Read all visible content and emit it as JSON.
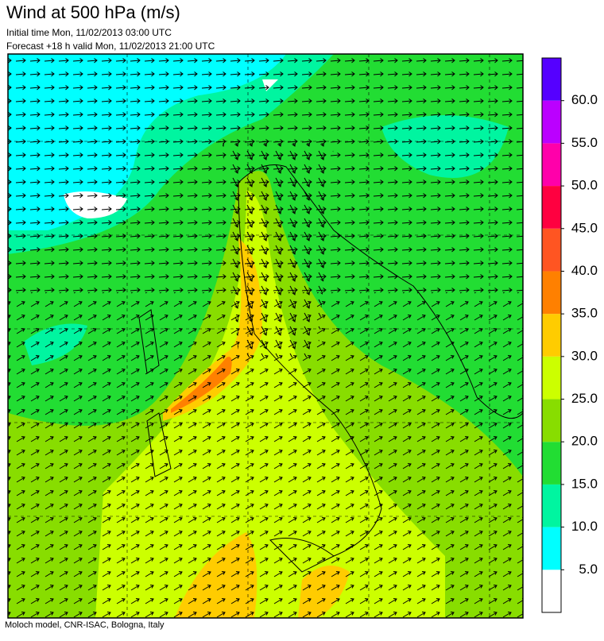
{
  "header": {
    "title": "Wind at 500 hPa (m/s)",
    "initial_time": "Initial time  Mon, 11/02/2013 03:00 UTC",
    "forecast": "Forecast +18 h valid  Mon, 11/02/2013 21:00 UTC"
  },
  "colorbar": {
    "colors": [
      "#ffffff",
      "#00ffff",
      "#00f5a0",
      "#22dd33",
      "#88dd00",
      "#ccff00",
      "#ffcc00",
      "#ff8000",
      "#ff5522",
      "#ff0040",
      "#ff00aa",
      "#bb00ff",
      "#5500ff"
    ],
    "ticks": [
      {
        "value": 5,
        "label": "5.0"
      },
      {
        "value": 10,
        "label": "10.0"
      },
      {
        "value": 15,
        "label": "15.0"
      },
      {
        "value": 20,
        "label": "20.0"
      },
      {
        "value": 25,
        "label": "25.0"
      },
      {
        "value": 30,
        "label": "30.0"
      },
      {
        "value": 35,
        "label": "35.0"
      },
      {
        "value": 40,
        "label": "40.0"
      },
      {
        "value": 45,
        "label": "45.0"
      },
      {
        "value": 50,
        "label": "50.0"
      },
      {
        "value": 55,
        "label": "55.0"
      },
      {
        "value": 60,
        "label": "60.0"
      }
    ]
  },
  "footer": "Moloch model, CNR-ISAC, Bologna, Italy"
}
